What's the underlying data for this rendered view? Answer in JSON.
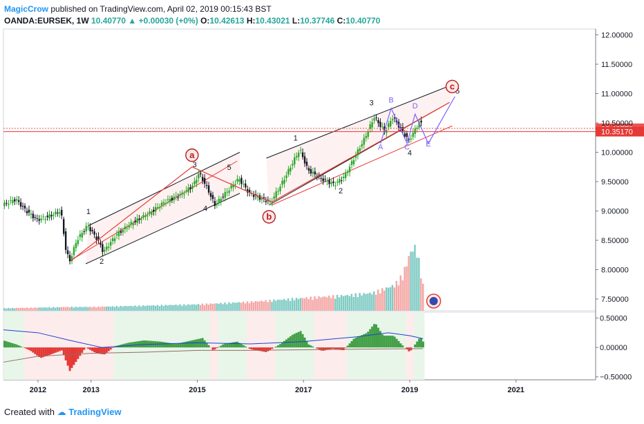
{
  "header": {
    "author": "MagicCrow",
    "published_text": "published on TradingView.com, April 02, 2019 00:15:43 BST",
    "symbol": "OANDA:EURSEK, 1W",
    "last": "10.40770",
    "change": "+0.00030 (+0%)",
    "open_label": "O:",
    "open": "10.42613",
    "high_label": "H:",
    "high": "10.43021",
    "low_label": "L:",
    "low": "10.37746",
    "close_label": "C:",
    "close": "10.40770"
  },
  "footer": {
    "created_with": "Created with",
    "brand": "TradingView"
  },
  "colors": {
    "up": "#26a69a",
    "down": "#ef5350",
    "accent": "#2196f3",
    "wave": "#e53935",
    "correction": "#7b61ff"
  },
  "chart_data": {
    "type": "candlestick",
    "y_axis": {
      "min": 7.3,
      "max": 12.1,
      "ticks": [
        "12.00000",
        "11.50000",
        "11.00000",
        "10.50000",
        "10.00000",
        "9.50000",
        "9.00000",
        "8.50000",
        "8.00000",
        "7.50000"
      ],
      "tick_values": [
        12.0,
        11.5,
        11.0,
        10.5,
        10.0,
        9.5,
        9.0,
        8.5,
        8.0,
        7.5
      ]
    },
    "x_axis": {
      "ticks": [
        "2012",
        "2013",
        "2015",
        "2017",
        "2019",
        "2021"
      ],
      "tick_years": [
        2012,
        2013,
        2015,
        2017,
        2019,
        2021
      ],
      "min_year": 2011.35,
      "max_year": 2022.5
    },
    "price_labels": [
      {
        "value": 10.4077,
        "text": "10.40770",
        "color": "#ef5350"
      },
      {
        "value": 10.3517,
        "text": "10.35170",
        "color": "#e53935"
      }
    ],
    "price_path": [
      [
        2011.35,
        9.1
      ],
      [
        2011.6,
        9.2
      ],
      [
        2011.8,
        9.0
      ],
      [
        2012.0,
        8.85
      ],
      [
        2012.2,
        8.9
      ],
      [
        2012.45,
        9.0
      ],
      [
        2012.55,
        8.3
      ],
      [
        2012.62,
        8.15
      ],
      [
        2012.75,
        8.5
      ],
      [
        2012.95,
        8.75
      ],
      [
        2013.15,
        8.5
      ],
      [
        2013.25,
        8.3
      ],
      [
        2013.5,
        8.6
      ],
      [
        2013.8,
        8.8
      ],
      [
        2014.1,
        8.95
      ],
      [
        2014.4,
        9.15
      ],
      [
        2014.75,
        9.3
      ],
      [
        2014.95,
        9.45
      ],
      [
        2015.05,
        9.65
      ],
      [
        2015.2,
        9.4
      ],
      [
        2015.35,
        9.1
      ],
      [
        2015.6,
        9.35
      ],
      [
        2015.8,
        9.55
      ],
      [
        2016.0,
        9.3
      ],
      [
        2016.25,
        9.2
      ],
      [
        2016.4,
        9.15
      ],
      [
        2016.6,
        9.45
      ],
      [
        2016.8,
        9.8
      ],
      [
        2016.95,
        10.05
      ],
      [
        2017.1,
        9.7
      ],
      [
        2017.35,
        9.55
      ],
      [
        2017.6,
        9.45
      ],
      [
        2017.8,
        9.6
      ],
      [
        2018.0,
        9.95
      ],
      [
        2018.15,
        10.2
      ],
      [
        2018.35,
        10.6
      ],
      [
        2018.55,
        10.35
      ],
      [
        2018.7,
        10.6
      ],
      [
        2018.85,
        10.4
      ],
      [
        2019.0,
        10.2
      ],
      [
        2019.1,
        10.35
      ],
      [
        2019.22,
        10.55
      ],
      [
        2019.25,
        10.41
      ]
    ],
    "volume": {
      "min": 0,
      "max": 100,
      "path": [
        [
          2011.35,
          4
        ],
        [
          2012.0,
          5
        ],
        [
          2012.6,
          6
        ],
        [
          2013.0,
          6
        ],
        [
          2014.0,
          8
        ],
        [
          2015.0,
          10
        ],
        [
          2016.0,
          14
        ],
        [
          2017.0,
          20
        ],
        [
          2017.8,
          24
        ],
        [
          2018.3,
          28
        ],
        [
          2018.7,
          40
        ],
        [
          2018.85,
          55
        ],
        [
          2019.0,
          92
        ],
        [
          2019.1,
          100
        ],
        [
          2019.2,
          60
        ],
        [
          2019.25,
          30
        ]
      ]
    },
    "oscillator": {
      "min": -0.55,
      "max": 0.6,
      "ticks": [
        "0.50000",
        "0.00000",
        "−0.50000"
      ],
      "tick_values": [
        0.5,
        0.0,
        -0.5
      ],
      "histogram": [
        [
          2011.35,
          0.12
        ],
        [
          2011.6,
          0.05
        ],
        [
          2011.85,
          -0.05
        ],
        [
          2012.05,
          -0.18
        ],
        [
          2012.3,
          -0.1
        ],
        [
          2012.45,
          -0.05
        ],
        [
          2012.6,
          -0.4
        ],
        [
          2012.75,
          -0.2
        ],
        [
          2012.9,
          0.0
        ],
        [
          2013.1,
          -0.1
        ],
        [
          2013.25,
          -0.12
        ],
        [
          2013.45,
          0.02
        ],
        [
          2013.7,
          0.08
        ],
        [
          2014.0,
          0.12
        ],
        [
          2014.3,
          0.1
        ],
        [
          2014.6,
          0.06
        ],
        [
          2014.9,
          0.12
        ],
        [
          2015.1,
          0.16
        ],
        [
          2015.3,
          -0.05
        ],
        [
          2015.5,
          0.06
        ],
        [
          2015.75,
          0.1
        ],
        [
          2016.0,
          -0.03
        ],
        [
          2016.3,
          -0.08
        ],
        [
          2016.55,
          0.05
        ],
        [
          2016.8,
          0.22
        ],
        [
          2016.95,
          0.28
        ],
        [
          2017.1,
          0.05
        ],
        [
          2017.35,
          -0.06
        ],
        [
          2017.55,
          -0.02
        ],
        [
          2017.75,
          -0.05
        ],
        [
          2017.95,
          0.15
        ],
        [
          2018.2,
          0.25
        ],
        [
          2018.35,
          0.42
        ],
        [
          2018.5,
          0.2
        ],
        [
          2018.7,
          0.2
        ],
        [
          2018.85,
          0.05
        ],
        [
          2019.0,
          -0.08
        ],
        [
          2019.1,
          0.05
        ],
        [
          2019.2,
          0.18
        ],
        [
          2019.25,
          0.1
        ]
      ],
      "signal": [
        [
          2011.35,
          0.3
        ],
        [
          2012.0,
          0.25
        ],
        [
          2012.6,
          0.12
        ],
        [
          2013.2,
          0.0
        ],
        [
          2014.0,
          0.05
        ],
        [
          2015.0,
          0.08
        ],
        [
          2016.0,
          0.06
        ],
        [
          2017.0,
          0.1
        ],
        [
          2018.0,
          0.18
        ],
        [
          2018.6,
          0.25
        ],
        [
          2019.0,
          0.2
        ],
        [
          2019.25,
          0.15
        ]
      ],
      "base": [
        [
          2011.35,
          -0.25
        ],
        [
          2012.0,
          -0.15
        ],
        [
          2013.0,
          -0.1
        ],
        [
          2014.0,
          -0.08
        ],
        [
          2015.0,
          -0.05
        ],
        [
          2016.0,
          -0.05
        ],
        [
          2017.0,
          -0.04
        ],
        [
          2018.0,
          -0.03
        ],
        [
          2019.25,
          -0.02
        ]
      ]
    },
    "channels": [
      {
        "lines": [
          [
            [
              2012.6,
              8.15
            ],
            [
              2015.75,
              9.85
            ]
          ],
          [
            [
              2012.95,
              8.75
            ],
            [
              2015.8,
              10.0
            ]
          ],
          [
            [
              2012.9,
              8.1
            ],
            [
              2015.8,
              9.3
            ]
          ]
        ]
      },
      {
        "lines": [
          [
            [
              2016.4,
              9.1
            ],
            [
              2019.8,
              10.45
            ]
          ],
          [
            [
              2016.3,
              9.9
            ],
            [
              2019.8,
              11.15
            ]
          ],
          [
            [
              2016.35,
              9.1
            ],
            [
              2019.75,
              10.85
            ]
          ]
        ]
      }
    ],
    "wave_labels": [
      {
        "text": "1",
        "x": 2012.95,
        "y": 8.95,
        "color": "#131722"
      },
      {
        "text": "2",
        "x": 2013.2,
        "y": 8.1,
        "color": "#131722"
      },
      {
        "text": "3",
        "x": 2014.95,
        "y": 9.75,
        "color": "#131722"
      },
      {
        "text": "4",
        "x": 2015.15,
        "y": 9.0,
        "color": "#131722"
      },
      {
        "text": "5",
        "x": 2015.6,
        "y": 9.7,
        "color": "#131722"
      },
      {
        "text": "1",
        "x": 2016.85,
        "y": 10.2,
        "color": "#131722"
      },
      {
        "text": "2",
        "x": 2017.7,
        "y": 9.3,
        "color": "#131722"
      },
      {
        "text": "3",
        "x": 2018.28,
        "y": 10.8,
        "color": "#131722"
      },
      {
        "text": "4",
        "x": 2019.0,
        "y": 9.95,
        "color": "#131722"
      },
      {
        "text": "5",
        "x": 2019.9,
        "y": 11.0,
        "color": "#131722"
      },
      {
        "text": "A",
        "x": 2018.45,
        "y": 10.05,
        "color": "#7b61ff"
      },
      {
        "text": "B",
        "x": 2018.65,
        "y": 10.85,
        "color": "#7b61ff"
      },
      {
        "text": "C",
        "x": 2018.95,
        "y": 10.05,
        "color": "#7b61ff"
      },
      {
        "text": "D",
        "x": 2019.1,
        "y": 10.75,
        "color": "#7b61ff"
      },
      {
        "text": "E",
        "x": 2019.35,
        "y": 10.1,
        "color": "#7b61ff"
      }
    ],
    "circle_labels": [
      {
        "text": "a",
        "x": 2014.9,
        "y": 9.95
      },
      {
        "text": "b",
        "x": 2016.35,
        "y": 8.9
      },
      {
        "text": "c",
        "x": 2019.8,
        "y": 11.12
      }
    ],
    "wave_paths": [
      {
        "color": "#e53935",
        "points": [
          [
            2012.62,
            8.15
          ],
          [
            2014.9,
            9.75
          ],
          [
            2016.4,
            9.15
          ],
          [
            2019.75,
            10.85
          ]
        ]
      },
      {
        "color": "#7b61ff",
        "points": [
          [
            2018.45,
            10.15
          ],
          [
            2018.65,
            10.75
          ],
          [
            2018.95,
            10.15
          ],
          [
            2019.1,
            10.65
          ],
          [
            2019.35,
            10.15
          ],
          [
            2019.85,
            10.95
          ]
        ]
      }
    ]
  }
}
